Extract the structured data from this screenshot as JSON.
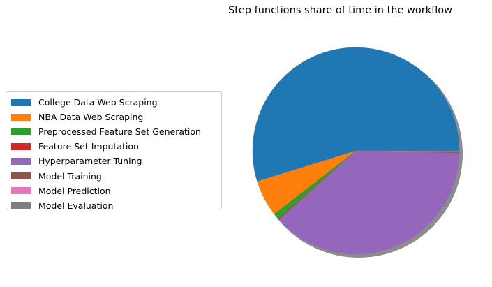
{
  "chart_data": {
    "type": "pie",
    "title": "Step functions share of time in the workflow",
    "categories": [
      "College Data Web Scraping",
      "NBA Data Web Scraping",
      "Preprocessed Feature Set Generation",
      "Feature Set Imputation",
      "Hyperparameter Tuning",
      "Model Training",
      "Model Prediction",
      "Model Evaluation"
    ],
    "values": [
      54.8,
      5.7,
      1.0,
      0.1,
      38.1,
      0.1,
      0.1,
      0.1
    ],
    "colors": [
      "#1f77b4",
      "#ff7f0e",
      "#2ca02c",
      "#d62728",
      "#9467bd",
      "#8c564b",
      "#e377c2",
      "#7f7f7f"
    ],
    "shadow": true,
    "legend_position": "left"
  }
}
